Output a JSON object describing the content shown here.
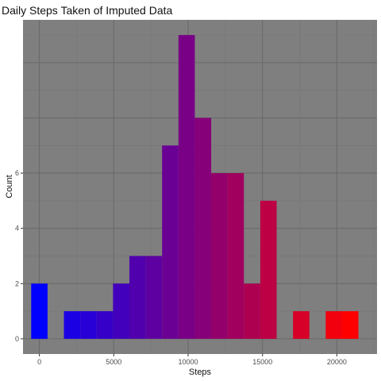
{
  "chart_data": {
    "type": "bar",
    "title": "Daily Steps Taken of Imputed Data",
    "xlabel": "Steps",
    "ylabel": "Count",
    "bin_width": 1100,
    "bins": [
      {
        "center": 0,
        "count": 2
      },
      {
        "center": 1100,
        "count": 0
      },
      {
        "center": 2200,
        "count": 1
      },
      {
        "center": 3300,
        "count": 1
      },
      {
        "center": 4400,
        "count": 1
      },
      {
        "center": 5500,
        "count": 2
      },
      {
        "center": 6600,
        "count": 3
      },
      {
        "center": 7700,
        "count": 3
      },
      {
        "center": 8800,
        "count": 7
      },
      {
        "center": 9900,
        "count": 11
      },
      {
        "center": 11000,
        "count": 8
      },
      {
        "center": 12100,
        "count": 6
      },
      {
        "center": 13200,
        "count": 6
      },
      {
        "center": 14300,
        "count": 2
      },
      {
        "center": 15400,
        "count": 5
      },
      {
        "center": 16500,
        "count": 0
      },
      {
        "center": 17600,
        "count": 1
      },
      {
        "center": 18700,
        "count": 0
      },
      {
        "center": 19800,
        "count": 1
      },
      {
        "center": 20900,
        "count": 1
      }
    ],
    "x_ticks": [
      0,
      5000,
      10000,
      15000,
      20000
    ],
    "y_ticks": [
      0,
      2,
      4,
      6
    ],
    "xlim": [
      -1100,
      22700
    ],
    "ylim": [
      -0.55,
      11.55
    ],
    "grid": true,
    "legend": "none",
    "colors": {
      "panel_background": "#7f7f7f",
      "grid_major": "#6a6a6a",
      "grid_minor": "#767676",
      "fill_low": "#0000ff",
      "fill_high": "#ff0000"
    }
  }
}
